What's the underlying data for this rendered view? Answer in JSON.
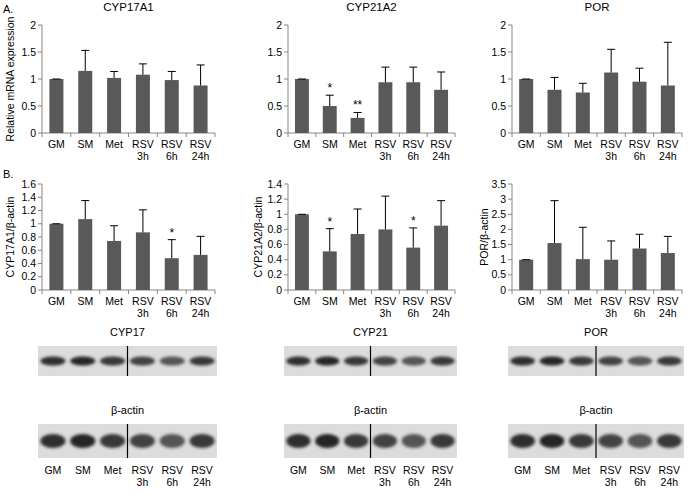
{
  "panel_labels": [
    "A.",
    "B."
  ],
  "chart_data": [
    {
      "type": "bar",
      "title": "CYP17A1",
      "y_label": "Relative mRNA expression",
      "categories": [
        "GM",
        "SM",
        "Met",
        "RSV 3h",
        "RSV 6h",
        "RSV 24h"
      ],
      "values": [
        1,
        1.15,
        1.02,
        1.08,
        0.98,
        0.88
      ],
      "errors": [
        0,
        0.38,
        0.12,
        0.2,
        0.16,
        0.38
      ],
      "annotations": [
        null,
        null,
        null,
        null,
        null,
        null
      ],
      "color": "#595959",
      "ylim": [
        0,
        2
      ],
      "yticks": [
        0,
        0.5,
        1,
        1.5,
        2
      ]
    },
    {
      "type": "bar",
      "title": "CYP21A2",
      "categories": [
        "GM",
        "SM",
        "Met",
        "RSV 3h",
        "RSV 6h",
        "RSV 24h"
      ],
      "values": [
        1,
        0.5,
        0.28,
        0.94,
        0.94,
        0.8
      ],
      "errors": [
        0,
        0.2,
        0.1,
        0.28,
        0.28,
        0.33
      ],
      "annotations": [
        null,
        "*",
        "**",
        null,
        null,
        null
      ],
      "color": "#595959",
      "ylim": [
        0,
        2
      ],
      "yticks": [
        0,
        0.5,
        1,
        1.5,
        2
      ]
    },
    {
      "type": "bar",
      "title": "POR",
      "categories": [
        "GM",
        "SM",
        "Met",
        "RSV 3h",
        "RSV 6h",
        "RSV 24h"
      ],
      "values": [
        1,
        0.8,
        0.75,
        1.12,
        0.95,
        0.88
      ],
      "errors": [
        0,
        0.23,
        0.17,
        0.43,
        0.25,
        0.8
      ],
      "annotations": [
        null,
        null,
        null,
        null,
        null,
        null
      ],
      "color": "#595959",
      "ylim": [
        0,
        2
      ],
      "yticks": [
        0,
        0.5,
        1,
        1.5,
        2
      ]
    },
    {
      "type": "bar",
      "y_label": "CYP17A1/β-actin",
      "categories": [
        "GM",
        "SM",
        "Met",
        "RSV 3h",
        "RSV 6h",
        "RSV 24h"
      ],
      "values": [
        1,
        1.07,
        0.74,
        0.87,
        0.48,
        0.53
      ],
      "errors": [
        0,
        0.28,
        0.23,
        0.34,
        0.28,
        0.28
      ],
      "annotations": [
        null,
        null,
        null,
        null,
        "*",
        null
      ],
      "color": "#595959",
      "ylim": [
        0,
        1.6
      ],
      "yticks": [
        0,
        0.2,
        0.4,
        0.6,
        0.8,
        1,
        1.2,
        1.4,
        1.6
      ]
    },
    {
      "type": "bar",
      "y_label": "CYP21A2/β-actin",
      "categories": [
        "GM",
        "SM",
        "Met",
        "RSV 3h",
        "RSV 6h",
        "RSV 24h"
      ],
      "values": [
        1,
        0.51,
        0.74,
        0.8,
        0.56,
        0.85
      ],
      "errors": [
        0,
        0.3,
        0.33,
        0.44,
        0.26,
        0.33
      ],
      "annotations": [
        null,
        "*",
        null,
        null,
        "*",
        null
      ],
      "color": "#595959",
      "ylim": [
        0,
        1.4
      ],
      "yticks": [
        0,
        0.2,
        0.4,
        0.6,
        0.8,
        1,
        1.2,
        1.4
      ]
    },
    {
      "type": "bar",
      "y_label": "POR/β-actin",
      "categories": [
        "GM",
        "SM",
        "Met",
        "RSV 3h",
        "RSV 6h",
        "RSV 24h"
      ],
      "values": [
        1,
        1.55,
        1.02,
        1.0,
        1.37,
        1.22
      ],
      "errors": [
        0,
        1.4,
        1.05,
        0.62,
        0.47,
        0.55
      ],
      "annotations": [
        null,
        null,
        null,
        null,
        null,
        null
      ],
      "color": "#595959",
      "ylim": [
        0,
        3.5
      ],
      "yticks": [
        0,
        0.5,
        1,
        1.5,
        2,
        2.5,
        3,
        3.5
      ]
    }
  ],
  "blots": [
    {
      "label": "CYP17",
      "loading_label": "β-actin",
      "lanes": [
        "GM",
        "SM",
        "Met",
        "RSV 3h",
        "RSV 6h",
        "RSV 24h"
      ]
    },
    {
      "label": "CYP21",
      "loading_label": "β-actin",
      "lanes": [
        "GM",
        "SM",
        "Met",
        "RSV 3h",
        "RSV 6h",
        "RSV 24h"
      ]
    },
    {
      "label": "POR",
      "loading_label": "β-actin",
      "lanes": [
        "GM",
        "SM",
        "Met",
        "RSV 3h",
        "RSV 6h",
        "RSV 24h"
      ]
    }
  ]
}
